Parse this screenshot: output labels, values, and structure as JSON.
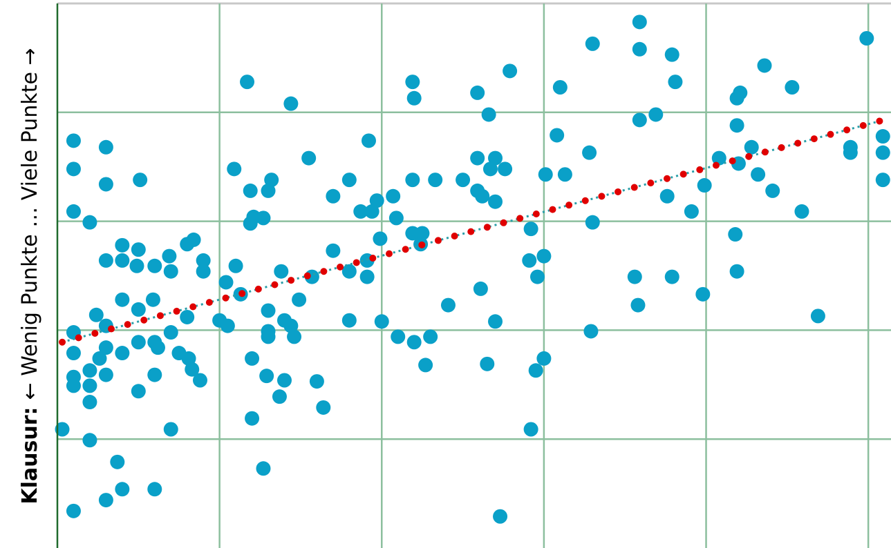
{
  "chart_data": {
    "type": "scatter",
    "ylabel_prefix": "Klausur:",
    "ylabel": "← Wenig Punkte … Viele Punkte →",
    "xlim": [
      0,
      5.14
    ],
    "ylim": [
      0,
      5
    ],
    "xticks": [
      1,
      2,
      3,
      4,
      5
    ],
    "yticks": [
      1,
      2,
      3,
      4
    ],
    "grid": true,
    "grid_color": "#8cbf9e",
    "color": "#0aa0c8",
    "x": [
      0.03,
      0.1,
      0.1,
      0.1,
      0.1,
      0.1,
      0.1,
      0.1,
      0.1,
      0.2,
      0.2,
      0.2,
      0.2,
      0.2,
      0.24,
      0.26,
      0.3,
      0.3,
      0.3,
      0.3,
      0.3,
      0.3,
      0.3,
      0.37,
      0.4,
      0.4,
      0.4,
      0.4,
      0.4,
      0.5,
      0.49,
      0.5,
      0.5,
      0.5,
      0.51,
      0.6,
      0.59,
      0.6,
      0.62,
      0.6,
      0.6,
      0.69,
      0.7,
      0.7,
      0.7,
      0.75,
      0.8,
      0.84,
      0.81,
      0.8,
      0.83,
      0.88,
      0.9,
      0.9,
      1.0,
      1.04,
      1.05,
      1.09,
      1.1,
      1.13,
      1.17,
      1.19,
      1.19,
      1.21,
      1.2,
      1.2,
      1.27,
      1.27,
      1.3,
      1.32,
      1.29,
      1.3,
      1.3,
      1.3,
      1.37,
      1.38,
      1.4,
      1.4,
      1.44,
      1.46,
      1.44,
      1.49,
      1.55,
      1.57,
      1.6,
      1.64,
      1.7,
      1.7,
      1.8,
      1.8,
      1.8,
      1.87,
      1.92,
      1.94,
      1.91,
      1.91,
      1.97,
      1.99,
      2.0,
      2.07,
      2.09,
      2.1,
      2.19,
      2.2,
      2.19,
      2.19,
      2.25,
      2.24,
      2.2,
      2.27,
      2.3,
      2.33,
      2.41,
      2.5,
      2.59,
      2.59,
      2.59,
      2.62,
      2.66,
      2.7,
      2.67,
      2.76,
      2.7,
      2.61,
      2.7,
      2.65,
      2.73,
      2.79,
      2.92,
      2.91,
      3.0,
      2.96,
      2.95,
      3.0,
      2.92,
      3.01,
      3.08,
      3.1,
      3.13,
      3.28,
      3.3,
      3.3,
      3.29,
      3.59,
      3.59,
      3.59,
      3.69,
      3.79,
      3.81,
      3.76,
      3.56,
      3.58,
      3.79,
      3.91,
      3.99,
      4.08,
      3.98,
      4.19,
      4.21,
      4.19,
      4.2,
      4.28,
      4.32,
      4.36,
      4.41,
      4.53,
      4.59,
      4.18,
      4.19,
      4.69,
      4.89,
      4.89,
      4.99,
      5.09,
      5.09,
      5.09
    ],
    "y": [
      1.09,
      0.34,
      3.74,
      3.48,
      3.09,
      1.98,
      1.79,
      1.57,
      1.49,
      2.99,
      1.63,
      1.49,
      1.34,
      0.99,
      2.14,
      1.74,
      3.68,
      3.34,
      2.64,
      2.04,
      1.84,
      1.59,
      0.44,
      0.79,
      2.78,
      2.64,
      2.28,
      1.79,
      0.54,
      2.74,
      2.59,
      2.19,
      1.89,
      1.44,
      3.38,
      2.59,
      2.28,
      1.89,
      1.84,
      1.59,
      0.54,
      2.68,
      2.54,
      1.98,
      1.09,
      1.79,
      2.79,
      2.83,
      1.74,
      2.12,
      1.64,
      1.54,
      2.64,
      2.54,
      2.09,
      2.44,
      2.04,
      3.48,
      2.59,
      2.33,
      4.28,
      3.28,
      2.98,
      3.04,
      1.74,
      1.19,
      3.03,
      0.73,
      3.28,
      3.38,
      1.58,
      2.18,
      1.99,
      1.94,
      1.39,
      2.54,
      2.09,
      1.54,
      2.04,
      1.94,
      4.08,
      2.28,
      3.58,
      2.49,
      1.53,
      1.29,
      3.23,
      2.73,
      3.38,
      2.54,
      2.09,
      3.09,
      3.74,
      3.09,
      2.64,
      2.49,
      3.19,
      2.84,
      2.08,
      3.23,
      3.03,
      1.94,
      4.28,
      4.13,
      3.38,
      2.89,
      2.89,
      2.79,
      1.89,
      1.68,
      1.94,
      3.38,
      2.23,
      3.38,
      4.18,
      3.58,
      3.28,
      3.23,
      3.98,
      3.58,
      3.48,
      3.48,
      3.18,
      2.38,
      2.08,
      1.69,
      0.29,
      4.38,
      2.93,
      2.64,
      2.68,
      2.49,
      1.63,
      1.74,
      1.09,
      3.43,
      3.79,
      4.23,
      3.43,
      3.63,
      4.63,
      2.99,
      1.99,
      4.83,
      4.58,
      3.93,
      3.98,
      4.53,
      4.28,
      3.23,
      2.49,
      2.23,
      2.49,
      3.09,
      3.33,
      3.58,
      2.33,
      4.13,
      4.18,
      3.88,
      3.53,
      3.68,
      3.43,
      4.43,
      3.28,
      4.23,
      3.09,
      2.88,
      2.54,
      2.13,
      3.68,
      3.63,
      4.68,
      3.78,
      3.63,
      3.38
    ],
    "trendline": {
      "x": [
        0.03,
        5.07
      ],
      "y": [
        1.89,
        3.92
      ],
      "color": "#e00000",
      "line_color": "#2a9ea8"
    }
  }
}
